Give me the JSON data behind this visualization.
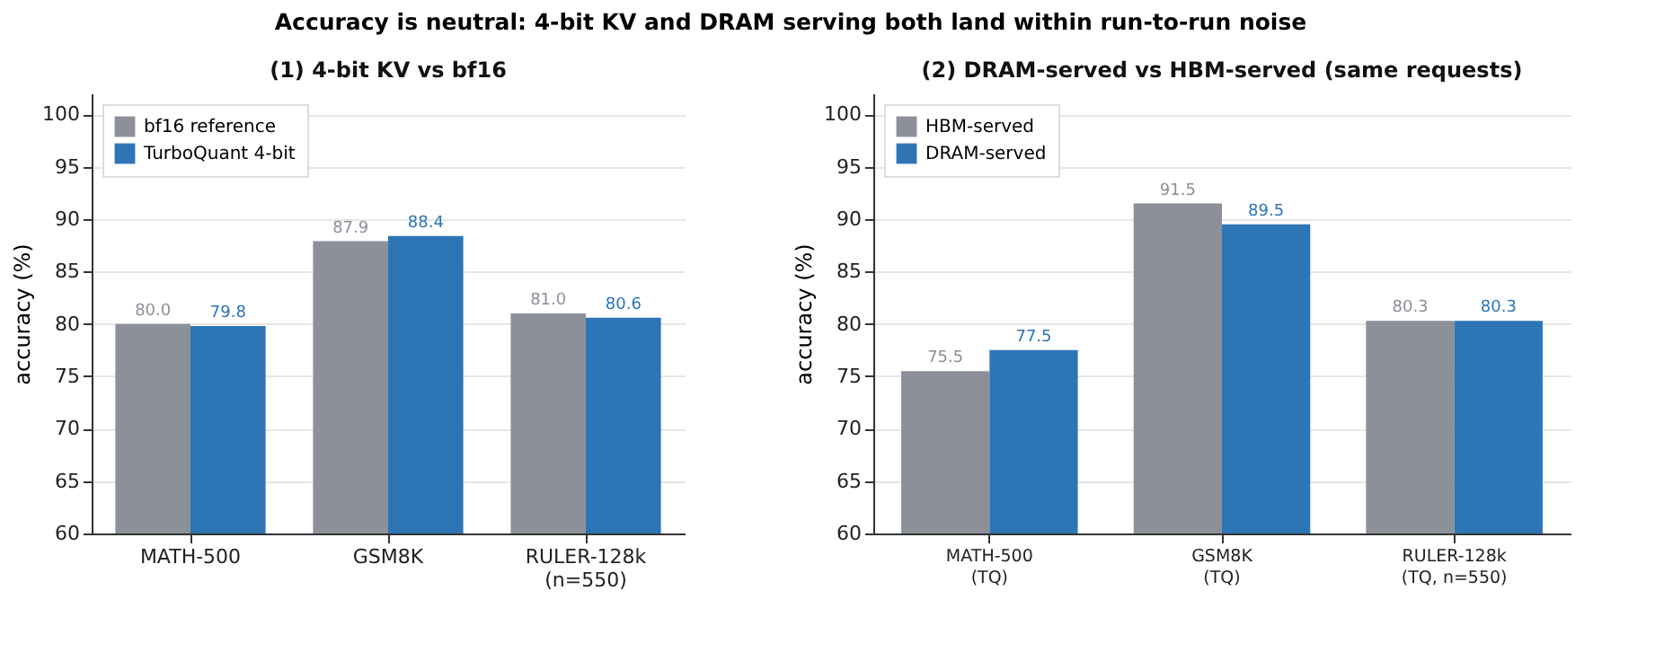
{
  "chart_data": [
    {
      "type": "bar",
      "title": "(1) 4-bit KV vs bf16",
      "ylabel": "accuracy (%)",
      "categories": [
        "MATH-500",
        "GSM8K",
        "RULER-128k\n(n=550)"
      ],
      "annotations": [
        "Accuracy is neutral: 4-bit KV and DRAM serving both land within run-to-run noise"
      ],
      "series": [
        {
          "name": "bf16 reference",
          "color": "#8c9099",
          "values": [
            80.0,
            87.9,
            81.0
          ],
          "value_labels": [
            "80.0",
            "87.9",
            "81.0"
          ]
        },
        {
          "name": "TurboQuant 4-bit",
          "color": "#2e75b6",
          "values": [
            79.8,
            88.4,
            80.6
          ],
          "value_labels": [
            "79.8",
            "88.4",
            "80.6"
          ]
        }
      ],
      "ylim": [
        60,
        102
      ],
      "yticks": [
        60,
        65,
        70,
        75,
        80,
        85,
        90,
        95,
        100
      ],
      "grid": "y",
      "legend": "top left",
      "data_labels": true
    },
    {
      "type": "bar",
      "title": "(2) DRAM-served vs HBM-served  (same requests)",
      "ylabel": "accuracy (%)",
      "categories": [
        "MATH-500\n(TQ)",
        "GSM8K\n(TQ)",
        "RULER-128k\n(TQ, n=550)"
      ],
      "series": [
        {
          "name": "HBM-served",
          "color": "#8c9099",
          "values": [
            75.5,
            91.5,
            80.3
          ],
          "value_labels": [
            "75.5",
            "91.5",
            "80.3"
          ]
        },
        {
          "name": "DRAM-served",
          "color": "#2e75b6",
          "values": [
            77.5,
            89.5,
            80.3
          ],
          "value_labels": [
            "77.5",
            "89.5",
            "80.3"
          ]
        }
      ],
      "ylim": [
        60,
        102
      ],
      "yticks": [
        60,
        65,
        70,
        75,
        80,
        85,
        90,
        95,
        100
      ],
      "grid": "y",
      "legend": "top left",
      "data_labels": true
    }
  ]
}
